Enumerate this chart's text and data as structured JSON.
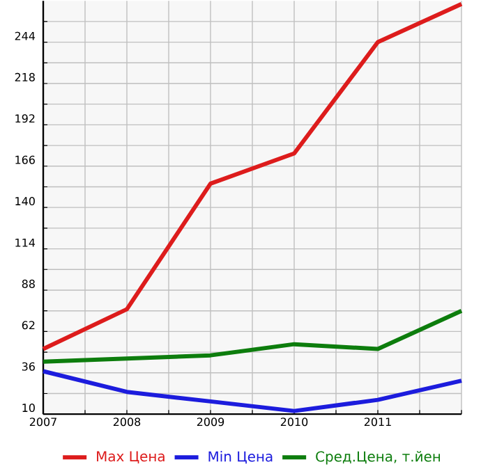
{
  "chart_data": {
    "type": "line",
    "x": [
      2007,
      2008,
      2009,
      2010,
      2011,
      2012
    ],
    "series": [
      {
        "name": "Max Цена",
        "color": "#dd1c1c",
        "values": [
          51,
          76,
          155,
          174,
          244,
          268
        ]
      },
      {
        "name": "Min Цена",
        "color": "#1c1cdd",
        "values": [
          37,
          24,
          18,
          12,
          19,
          31
        ]
      },
      {
        "name": "Сред.Цена, т.йен",
        "color": "#0d7d0d",
        "values": [
          43,
          45,
          47,
          54,
          51,
          75
        ]
      }
    ],
    "xlim": [
      2007,
      2012
    ],
    "xticks": [
      2007,
      {
        "value": 2007.5,
        "label": null
      },
      2008,
      {
        "value": 2008.5,
        "label": null
      },
      2009,
      {
        "value": 2009.5,
        "label": null
      },
      2010,
      {
        "value": 2010.5,
        "label": null
      },
      2011,
      {
        "value": 2011.5,
        "label": null
      },
      {
        "value": 2012,
        "label": null
      }
    ],
    "ylim": [
      10,
      270
    ],
    "yticks": [
      10,
      {
        "value": 23,
        "label": null
      },
      36,
      {
        "value": 49,
        "label": null
      },
      62,
      {
        "value": 75,
        "label": null
      },
      88,
      {
        "value": 101,
        "label": null
      },
      114,
      {
        "value": 127,
        "label": null
      },
      140,
      {
        "value": 153,
        "label": null
      },
      166,
      {
        "value": 179,
        "label": null
      },
      192,
      {
        "value": 205,
        "label": null
      },
      218,
      {
        "value": 231,
        "label": null
      },
      244,
      {
        "value": 257,
        "label": null
      }
    ],
    "grid": true,
    "legend": "bottom",
    "marker": "none",
    "line_style": "solid"
  }
}
